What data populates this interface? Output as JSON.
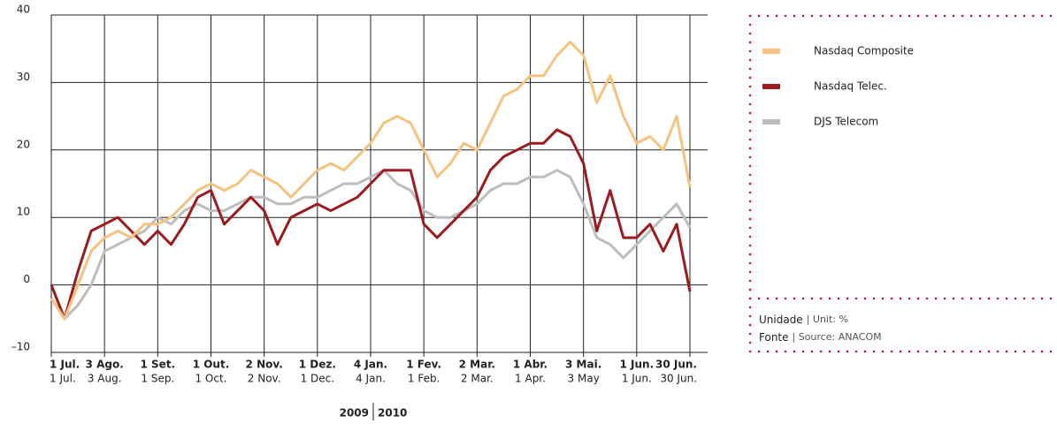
{
  "chart_data": {
    "type": "line",
    "x": [
      0,
      0.25,
      0.5,
      0.75,
      1,
      1.25,
      1.5,
      1.75,
      2,
      2.25,
      2.5,
      2.75,
      3,
      3.25,
      3.5,
      3.75,
      4,
      4.25,
      4.5,
      4.75,
      5,
      5.25,
      5.5,
      5.75,
      6,
      6.25,
      6.5,
      6.75,
      7,
      7.25,
      7.5,
      7.75,
      8,
      8.25,
      8.5,
      8.75,
      9,
      9.25,
      9.5,
      9.75,
      10,
      10.25,
      10.5,
      10.75,
      11,
      11.25,
      11.5,
      11.75,
      12
    ],
    "series": [
      {
        "name": "Nasdaq Composite",
        "color": "#f6c27e",
        "values": [
          -2,
          -5,
          0,
          5,
          7,
          8,
          7,
          9,
          9,
          10,
          12,
          14,
          15,
          14,
          15,
          17,
          16,
          15,
          13,
          15,
          17,
          18,
          17,
          19,
          21,
          24,
          25,
          24,
          20,
          16,
          18,
          21,
          20,
          24,
          28,
          29,
          31,
          31,
          34,
          36,
          34,
          27,
          31,
          25,
          21,
          22,
          20,
          25,
          14.5
        ]
      },
      {
        "name": "Nasdaq Telec.",
        "color": "#9b1c1f",
        "values": [
          0,
          -5,
          2,
          8,
          9,
          10,
          8,
          6,
          8,
          6,
          9,
          13,
          14,
          9,
          11,
          13,
          11,
          6,
          10,
          11,
          12,
          11,
          12,
          13,
          15,
          17,
          17,
          17,
          9,
          7,
          9,
          11,
          13,
          17,
          19,
          20,
          21,
          21,
          23,
          22,
          18,
          8,
          14,
          7,
          7,
          9,
          5,
          9,
          -1
        ]
      },
      {
        "name": "DJS Telecom",
        "color": "#bdbdbd",
        "values": [
          -2,
          -5,
          -3,
          0,
          5,
          6,
          7,
          8,
          10,
          9,
          11,
          12,
          11,
          11,
          12,
          13,
          13,
          12,
          12,
          13,
          13,
          14,
          15,
          15,
          16,
          17,
          15,
          14,
          11,
          10,
          10,
          11,
          12,
          14,
          15,
          15,
          16,
          16,
          17,
          16,
          12,
          7,
          6,
          4,
          6,
          8,
          10,
          12,
          8.5
        ]
      }
    ],
    "xlim": [
      0,
      12
    ],
    "xticks": [
      {
        "value": 0,
        "label": "1 Jul."
      },
      {
        "value": 1,
        "label": "3 Ago."
      },
      {
        "value": 2,
        "label": "1 Set."
      },
      {
        "value": 3,
        "label": "1 Out."
      },
      {
        "value": 4,
        "label": "2 Nov."
      },
      {
        "value": 5,
        "label": "1 Dez."
      },
      {
        "value": 6,
        "label": "4 Jan."
      },
      {
        "value": 7,
        "label": "1 Fev."
      },
      {
        "value": 8,
        "label": "2 Mar."
      },
      {
        "value": 9,
        "label": "1 Abr."
      },
      {
        "value": 10,
        "label": "3 Mai."
      },
      {
        "value": 11,
        "label": "1 Jun."
      },
      {
        "value": 12,
        "label": "30 Jun."
      }
    ],
    "xticks_en": [
      "1 Jul.",
      "3 Aug.",
      "1 Sep.",
      "1 Oct.",
      "2 Nov.",
      "1 Dec.",
      "4 Jan.",
      "1 Feb.",
      "2 Mar.",
      "1 Apr.",
      "3 May",
      "1 Jun.",
      "30 Jun."
    ],
    "years": [
      "2009",
      "2010"
    ],
    "ylim": [
      -10,
      40
    ],
    "yticks": [
      {
        "value": -10,
        "label": "–10"
      },
      0,
      10,
      20,
      30,
      40
    ],
    "grid": true,
    "notes": [
      {
        "bold": "Unidade",
        "text": "| Unit: %"
      },
      {
        "bold": "Fonte",
        "text": "| Source: ANACOM"
      }
    ]
  }
}
